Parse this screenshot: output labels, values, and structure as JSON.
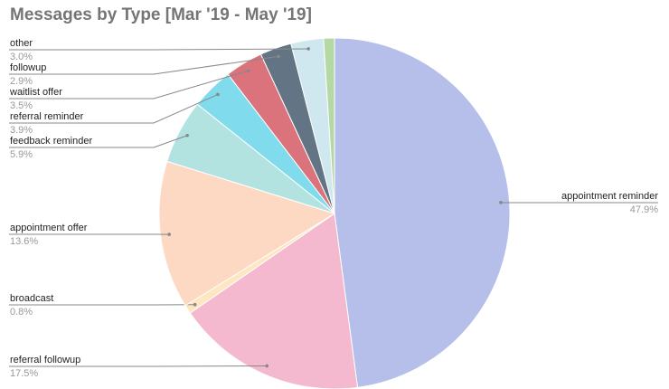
{
  "chart_data": {
    "type": "pie",
    "title": "Messages by Type [Mar '19 - May '19]",
    "categories": [
      "appointment reminder",
      "referral followup",
      "broadcast",
      "appointment offer",
      "feedback reminder",
      "referral reminder",
      "waitlist offer",
      "followup",
      "other",
      null
    ],
    "values": [
      47.9,
      17.5,
      0.8,
      13.6,
      5.9,
      3.9,
      3.5,
      2.9,
      3.0,
      1.0
    ],
    "value_labels": [
      "47.9%",
      "17.5%",
      "0.8%",
      "13.6%",
      "5.9%",
      "3.9%",
      "3.5%",
      "2.9%",
      "3.0%",
      null
    ],
    "colors": [
      "#b5bfe9",
      "#f4b8cf",
      "#fde6c0",
      "#fdd8c2",
      "#b2e3e1",
      "#80dced",
      "#db737c",
      "#637585",
      "#cfe7ee",
      "#b5d9a5"
    ]
  }
}
